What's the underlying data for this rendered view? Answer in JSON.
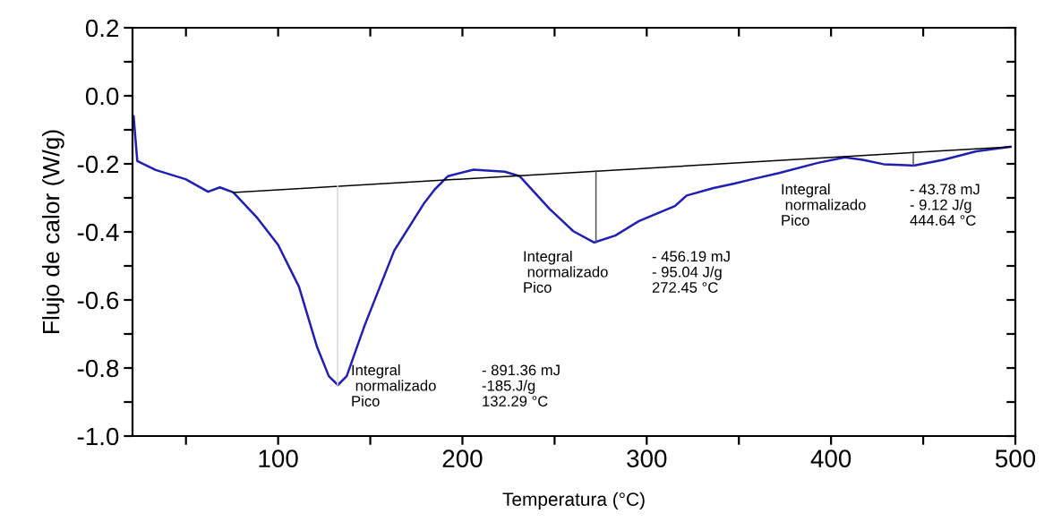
{
  "chart_data": {
    "type": "line",
    "xlabel": "Temperatura (°C)",
    "ylabel": "Flujo de calor (W/g)",
    "xlim": [
      21,
      500
    ],
    "ylim": [
      -1.0,
      0.2
    ],
    "xticks": [
      {
        "value": 50,
        "label": null
      },
      100,
      {
        "value": 150,
        "label": null
      },
      200,
      {
        "value": 250,
        "label": null
      },
      300,
      {
        "value": 350,
        "label": null
      },
      400,
      {
        "value": 450,
        "label": null
      },
      500
    ],
    "yticks": [
      {
        "value": 0.2,
        "label": "0.2"
      },
      {
        "value": 0.1,
        "label": null
      },
      {
        "value": 0,
        "label": "0.0"
      },
      {
        "value": -0.1,
        "label": null
      },
      {
        "value": -0.2,
        "label": "-0.2"
      },
      {
        "value": -0.3,
        "label": null
      },
      {
        "value": -0.4,
        "label": "-0.4"
      },
      {
        "value": -0.5,
        "label": null
      },
      {
        "value": -0.6,
        "label": "-0.6"
      },
      {
        "value": -0.7,
        "label": null
      },
      {
        "value": -0.8,
        "label": "-0.8"
      },
      {
        "value": -0.9,
        "label": null
      },
      {
        "value": -1.0,
        "label": "-1.0"
      }
    ],
    "grid": false,
    "legend": false,
    "marker": "none",
    "line_style": "solid",
    "series": [
      {
        "color": "#1f1fb4",
        "x": [
          21.6,
          23.6,
          33.6,
          49.8,
          62,
          68.4,
          75.7,
          88.7,
          100,
          111.3,
          121,
          127.5,
          132.4,
          137.2,
          147,
          163,
          179.3,
          185,
          192.2,
          206,
          223,
          231,
          247.2,
          260.2,
          271.5,
          282.9,
          295.8,
          315.3,
          321.7,
          336.3,
          347.6,
          357.3,
          371.8,
          392.9,
          407.5,
          417.2,
          428.5,
          444.7,
          460.9,
          478.8,
          497.4
        ],
        "values": [
          -0.06,
          -0.192,
          -0.218,
          -0.245,
          -0.282,
          -0.269,
          -0.284,
          -0.359,
          -0.438,
          -0.561,
          -0.736,
          -0.824,
          -0.85,
          -0.824,
          -0.674,
          -0.455,
          -0.315,
          -0.275,
          -0.236,
          -0.217,
          -0.223,
          -0.236,
          -0.332,
          -0.398,
          -0.431,
          -0.411,
          -0.368,
          -0.324,
          -0.293,
          -0.271,
          -0.258,
          -0.245,
          -0.227,
          -0.197,
          -0.181,
          -0.188,
          -0.201,
          -0.205,
          -0.188,
          -0.163,
          -0.15
        ]
      },
      {
        "color": "#000000",
        "x": [
          75.7,
          497.4
        ],
        "values": [
          -0.284,
          -0.15
        ]
      },
      {
        "color": "#d8d8d8",
        "x": [
          132.29,
          132.29
        ],
        "values": [
          -0.265,
          -0.85
        ]
      },
      {
        "color": "#555555",
        "x": [
          272.45,
          272.45
        ],
        "values": [
          -0.22,
          -0.431
        ]
      },
      {
        "color": "#555555",
        "x": [
          444.64,
          444.64
        ],
        "values": [
          -0.17,
          -0.205
        ]
      }
    ],
    "annotations": [
      "Integral\n normalizado\nPico",
      "- 891.36 mJ\n-185.J/g\n132.29 °C",
      "Integral\n normalizado\nPico",
      "- 456.19 mJ\n- 95.04 J/g\n272.45 °C",
      "Integral\n normalizado\nPico",
      "- 43.78 mJ\n- 9.12 J/g\n444.64 °C"
    ]
  }
}
